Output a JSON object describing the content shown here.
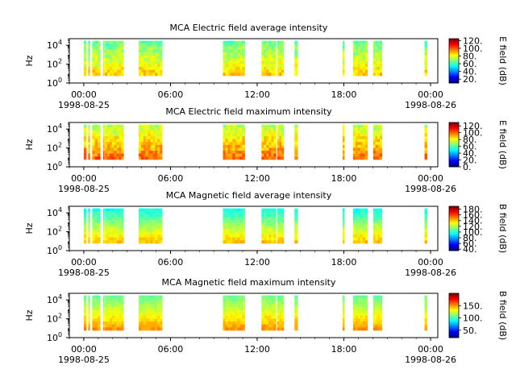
{
  "figure": {
    "panels": [
      {
        "title": "MCA  Electric field average intensity",
        "cbar_label": "E field (dB)",
        "cbar_ticks": [
          "120.",
          "100.",
          "80.",
          "60.",
          "40.",
          "20."
        ]
      },
      {
        "title": "MCA  Electric field maximum intensity",
        "cbar_label": "E field (dB)",
        "cbar_ticks": [
          "120.",
          "100.",
          "80.",
          "60.",
          "40.",
          "20.",
          "0."
        ]
      },
      {
        "title": "MCA  Magnetic field average intensity",
        "cbar_label": "B field (dB)",
        "cbar_ticks": [
          "180.",
          "160.",
          "140.",
          "120.",
          "100.",
          "80.",
          "60.",
          "40."
        ]
      },
      {
        "title": "MCA  Magnetic field maximum intensity",
        "cbar_label": "B field (dB)",
        "cbar_ticks": [
          "150.",
          "100.",
          "50."
        ]
      }
    ],
    "ylabel": "Hz",
    "ytick_labels": [
      "10^0",
      "10^2",
      "10^4"
    ],
    "xtick_labels": [
      "00:00",
      "06:00",
      "12:00",
      "18:00",
      "00:00"
    ],
    "xtick_dates": [
      "1998-08-25",
      "",
      "",
      "",
      "1998-08-26"
    ]
  },
  "chart_data": [
    {
      "type": "heatmap",
      "title": "MCA  Electric field average intensity",
      "xlabel": "",
      "ylabel": "Hz",
      "xlim": [
        "1998-08-24T23:00",
        "1998-08-26T00:30"
      ],
      "ylim_hz": [
        1,
        50000
      ],
      "yscale": "log",
      "colorbar": {
        "label": "E field (dB)",
        "range": [
          10,
          125
        ],
        "ticks": [
          20,
          40,
          60,
          80,
          100,
          120
        ]
      },
      "data_segments_utc": [
        [
          "00:00",
          "00:10"
        ],
        [
          "00:18",
          "00:25"
        ],
        [
          "00:35",
          "01:08"
        ],
        [
          "01:20",
          "01:23"
        ],
        [
          "01:28",
          "02:45"
        ],
        [
          "03:48",
          "05:25"
        ],
        [
          "09:38",
          "11:08"
        ],
        [
          "12:18",
          "13:18"
        ],
        [
          "13:23",
          "13:50"
        ],
        [
          "14:35",
          "14:48"
        ],
        [
          "17:55",
          "18:02"
        ],
        [
          "18:38",
          "19:38"
        ],
        [
          "20:02",
          "20:38"
        ],
        [
          "23:35",
          "23:45"
        ]
      ],
      "colormap": "jet",
      "typical_value_db": [
        55,
        95
      ]
    },
    {
      "type": "heatmap",
      "title": "MCA  Electric field maximum intensity",
      "xlabel": "",
      "ylabel": "Hz",
      "xlim": [
        "1998-08-24T23:00",
        "1998-08-26T00:30"
      ],
      "ylim_hz": [
        1,
        50000
      ],
      "yscale": "log",
      "colorbar": {
        "label": "E field (dB)",
        "range": [
          0,
          130
        ],
        "ticks": [
          0,
          20,
          40,
          60,
          80,
          100,
          120
        ]
      },
      "data_segments_utc": [
        [
          "00:00",
          "00:10"
        ],
        [
          "00:18",
          "00:25"
        ],
        [
          "00:35",
          "01:08"
        ],
        [
          "01:20",
          "01:23"
        ],
        [
          "01:28",
          "02:45"
        ],
        [
          "03:48",
          "05:25"
        ],
        [
          "09:38",
          "11:08"
        ],
        [
          "12:18",
          "13:18"
        ],
        [
          "13:23",
          "13:50"
        ],
        [
          "14:35",
          "14:48"
        ],
        [
          "17:55",
          "18:02"
        ],
        [
          "18:38",
          "19:38"
        ],
        [
          "20:02",
          "20:38"
        ],
        [
          "23:35",
          "23:45"
        ]
      ],
      "colormap": "jet",
      "typical_value_db": [
        60,
        110
      ]
    },
    {
      "type": "heatmap",
      "title": "MCA  Magnetic field average intensity",
      "xlabel": "",
      "ylabel": "Hz",
      "xlim": [
        "1998-08-24T23:00",
        "1998-08-26T00:30"
      ],
      "ylim_hz": [
        1,
        50000
      ],
      "yscale": "log",
      "colorbar": {
        "label": "B field (dB)",
        "range": [
          35,
          190
        ],
        "ticks": [
          40,
          60,
          80,
          100,
          120,
          140,
          160,
          180
        ]
      },
      "data_segments_utc": [
        [
          "00:00",
          "00:10"
        ],
        [
          "00:18",
          "00:25"
        ],
        [
          "00:35",
          "01:08"
        ],
        [
          "01:20",
          "01:23"
        ],
        [
          "01:28",
          "02:45"
        ],
        [
          "03:48",
          "05:25"
        ],
        [
          "09:38",
          "11:08"
        ],
        [
          "12:18",
          "13:18"
        ],
        [
          "13:23",
          "13:50"
        ],
        [
          "14:35",
          "14:48"
        ],
        [
          "17:55",
          "18:02"
        ],
        [
          "18:38",
          "19:38"
        ],
        [
          "20:02",
          "20:38"
        ],
        [
          "23:35",
          "23:45"
        ]
      ],
      "colormap": "jet",
      "typical_value_db": [
        90,
        150
      ]
    },
    {
      "type": "heatmap",
      "title": "MCA  Magnetic field maximum intensity",
      "xlabel": "",
      "ylabel": "Hz",
      "xlim": [
        "1998-08-24T23:00",
        "1998-08-26T00:30"
      ],
      "ylim_hz": [
        1,
        50000
      ],
      "yscale": "log",
      "colorbar": {
        "label": "B field (dB)",
        "range": [
          20,
          200
        ],
        "ticks": [
          50,
          100,
          150
        ]
      },
      "data_segments_utc": [
        [
          "00:00",
          "00:10"
        ],
        [
          "00:18",
          "00:25"
        ],
        [
          "00:35",
          "01:08"
        ],
        [
          "01:20",
          "01:23"
        ],
        [
          "01:28",
          "02:45"
        ],
        [
          "03:48",
          "05:25"
        ],
        [
          "09:38",
          "11:08"
        ],
        [
          "12:18",
          "13:18"
        ],
        [
          "13:23",
          "13:50"
        ],
        [
          "14:35",
          "14:48"
        ],
        [
          "17:55",
          "18:02"
        ],
        [
          "18:38",
          "19:38"
        ],
        [
          "20:02",
          "20:38"
        ],
        [
          "23:35",
          "23:45"
        ]
      ],
      "colormap": "jet",
      "typical_value_db": [
        100,
        160
      ]
    }
  ]
}
